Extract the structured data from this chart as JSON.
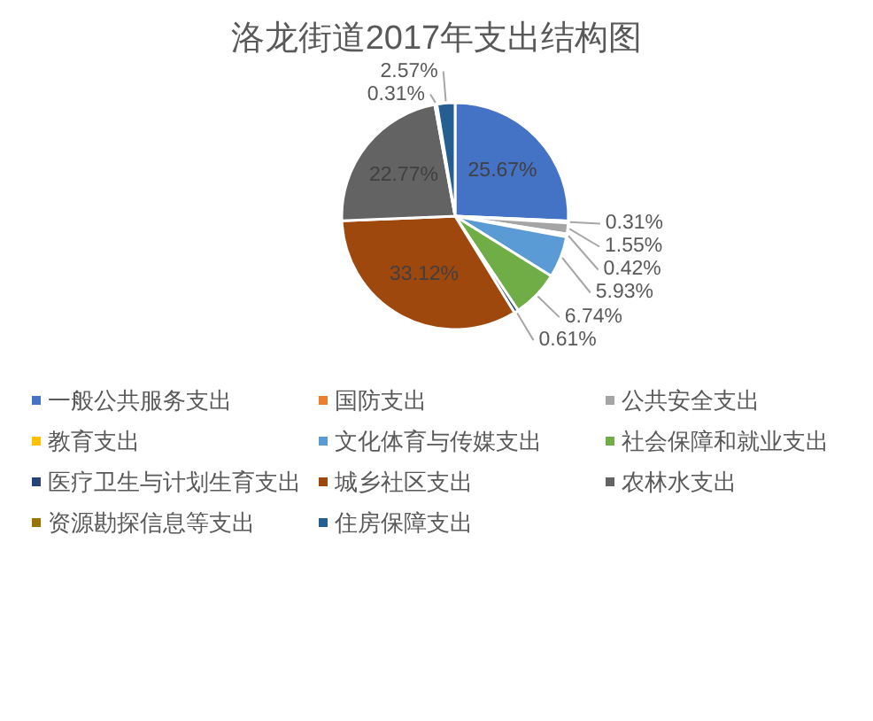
{
  "chart_data": {
    "type": "pie",
    "title": "洛龙街道2017年支出结构图",
    "categories": [
      "一般公共服务支出",
      "国防支出",
      "公共安全支出",
      "教育支出",
      "文化体育与传媒支出",
      "社会保障和就业支出",
      "医疗卫生与计划生育支出",
      "城乡社区支出",
      "农林水支出",
      "资源勘探信息等支出",
      "住房保障支出"
    ],
    "values": [
      25.67,
      0.31,
      1.55,
      0.42,
      5.93,
      6.74,
      0.61,
      33.12,
      22.77,
      0.31,
      2.57
    ],
    "colors": [
      "#4472c4",
      "#ed7d31",
      "#a5a5a5",
      "#ffc000",
      "#5b9bd5",
      "#70ad47",
      "#264478",
      "#9e480e",
      "#636363",
      "#997300",
      "#255e91"
    ],
    "value_labels": [
      "25.67%",
      "0.31%",
      "1.55%",
      "0.42%",
      "5.93%",
      "6.74%",
      "0.61%",
      "33.12%",
      "22.77%",
      "0.31%",
      "2.57%"
    ],
    "legend": "bottom"
  }
}
